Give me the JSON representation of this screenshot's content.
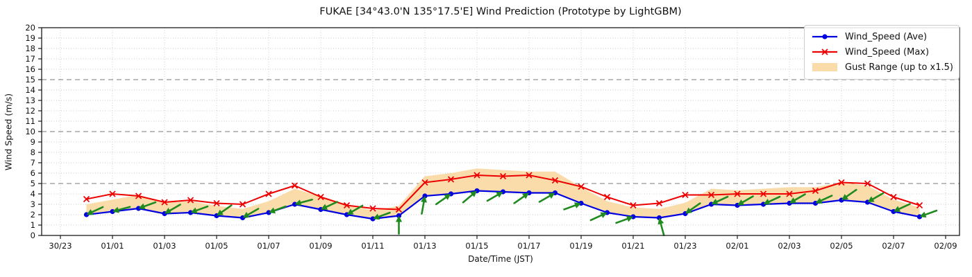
{
  "chart_data": {
    "type": "line",
    "title": "FUKAE [34°43.0'N 135°17.5'E] Wind Prediction (Prototype by LightGBM)",
    "xlabel": "Date/Time (JST)",
    "ylabel": "Wind Speed (m/s)",
    "ylim": [
      0,
      20
    ],
    "y_tick_step": 1,
    "dashed_levels": [
      5,
      10,
      15
    ],
    "grid": "dotted",
    "legend_position": "upper right",
    "x_tick_labels": [
      "30/23",
      "01/01",
      "01/03",
      "01/05",
      "01/07",
      "01/09",
      "01/11",
      "01/13",
      "01/15",
      "01/17",
      "01/19",
      "01/21",
      "01/23",
      "02/01",
      "02/03",
      "02/05",
      "02/07",
      "02/09"
    ],
    "x_tick_hour_step": 2,
    "hours_total": 34,
    "points": {
      "start_hour": 1,
      "labels": [
        "01/00",
        "01/01",
        "01/02",
        "01/03",
        "01/04",
        "01/05",
        "01/06",
        "01/07",
        "01/08",
        "01/09",
        "01/10",
        "01/11",
        "01/12",
        "01/13",
        "01/14",
        "01/15",
        "01/16",
        "01/17",
        "01/18",
        "01/19",
        "01/20",
        "01/21",
        "01/22",
        "01/23",
        "02/00",
        "02/01",
        "02/02",
        "02/03",
        "02/04",
        "02/05",
        "02/06",
        "02/07",
        "02/08"
      ],
      "ave": [
        2.0,
        2.3,
        2.6,
        2.1,
        2.2,
        1.9,
        1.7,
        2.2,
        3.0,
        2.5,
        2.0,
        1.6,
        1.9,
        3.8,
        4.0,
        4.3,
        4.2,
        4.1,
        4.1,
        3.1,
        2.2,
        1.8,
        1.7,
        2.1,
        3.0,
        2.9,
        3.0,
        3.1,
        3.1,
        3.4,
        3.2,
        2.3,
        1.8
      ],
      "max": [
        3.5,
        4.0,
        3.8,
        3.2,
        3.4,
        3.1,
        3.0,
        4.0,
        4.8,
        3.7,
        2.9,
        2.6,
        2.5,
        5.1,
        5.4,
        5.8,
        5.7,
        5.8,
        5.3,
        4.7,
        3.7,
        2.9,
        3.1,
        3.9,
        3.9,
        4.0,
        4.0,
        4.0,
        4.3,
        5.1,
        5.0,
        3.7,
        2.9
      ],
      "arrow_deg": [
        205,
        195,
        200,
        210,
        200,
        215,
        210,
        200,
        195,
        205,
        210,
        200,
        90,
        80,
        35,
        40,
        30,
        35,
        30,
        20,
        25,
        20,
        105,
        215,
        205,
        210,
        205,
        210,
        205,
        215,
        210,
        205,
        200
      ]
    },
    "gust_multiplier": 1.5,
    "series": [
      {
        "name": "Wind_Speed (Ave)",
        "style": "line-dot"
      },
      {
        "name": "Wind_Speed (Max)",
        "style": "line-x"
      },
      {
        "name": "Gust Range (up to x1.5)",
        "style": "fill"
      }
    ],
    "legend": [
      {
        "label": "Wind_Speed (Ave)"
      },
      {
        "label": "Wind_Speed (Max)"
      },
      {
        "label": "Gust Range (up to x1.5)"
      }
    ],
    "colors": {
      "ave": "#0000e0",
      "max": "#ee0000",
      "gust_band": "#fadcab",
      "arrows": "#1f8b1f",
      "grid": "#c9c9c9",
      "dashed": "#7a7a7a",
      "spine": "#1a1a1a"
    }
  }
}
